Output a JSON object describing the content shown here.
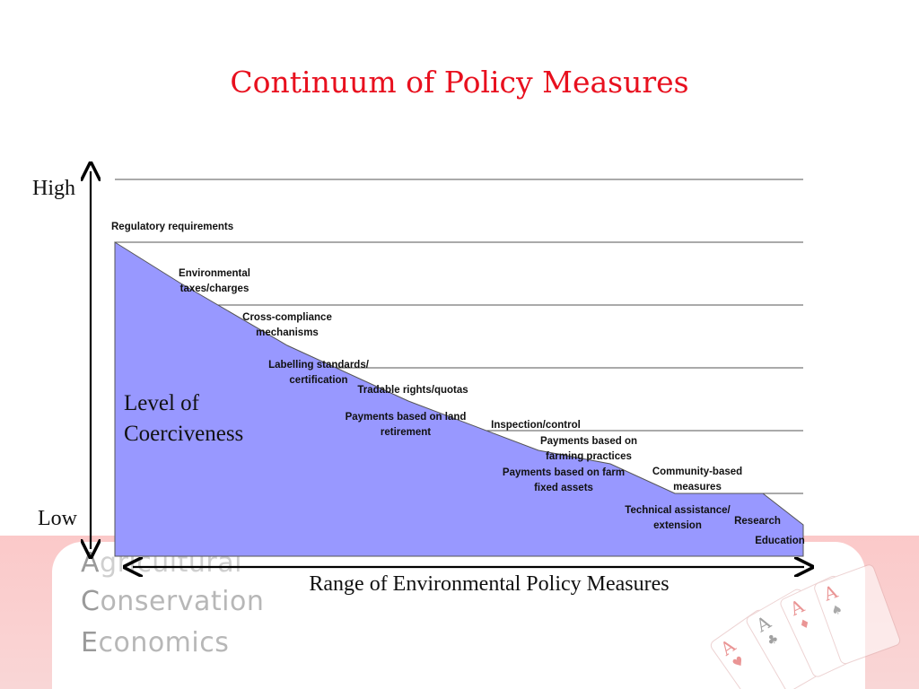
{
  "title": "Continuum of Policy Measures",
  "y_axis": {
    "high_label": "High",
    "low_label": "Low"
  },
  "area_label": {
    "line1": "Level of",
    "line2": "Coerciveness"
  },
  "x_axis_label": "Range of Environmental Policy Measures",
  "measures": [
    {
      "line1": "Regulatory requirements",
      "line2": ""
    },
    {
      "line1": "Environmental",
      "line2": "taxes/charges"
    },
    {
      "line1": "Cross-compliance",
      "line2": "mechanisms"
    },
    {
      "line1": "Labelling standards/",
      "line2": "certification"
    },
    {
      "line1": "Tradable rights/quotas",
      "line2": ""
    },
    {
      "line1": "Payments based on land",
      "line2": "retirement"
    },
    {
      "line1": "Inspection/control",
      "line2": ""
    },
    {
      "line1": "Payments based on",
      "line2": "farming practices"
    },
    {
      "line1": "Payments based on farm",
      "line2": "fixed assets"
    },
    {
      "line1": "Community-based",
      "line2": "measures"
    },
    {
      "line1": "Technical assistance/",
      "line2": "extension"
    },
    {
      "line1": "Research",
      "line2": ""
    },
    {
      "line1": "Education",
      "line2": ""
    }
  ],
  "watermark": {
    "line1_cap": "A",
    "line1_rest": "gricultural",
    "line2_cap": "C",
    "line2_rest": "onservation",
    "line3_cap": "E",
    "line3_rest": "conomics"
  },
  "colors": {
    "title": "#e8101e",
    "area_fill": "#9898ff",
    "background_band": "#fbc9c9"
  }
}
